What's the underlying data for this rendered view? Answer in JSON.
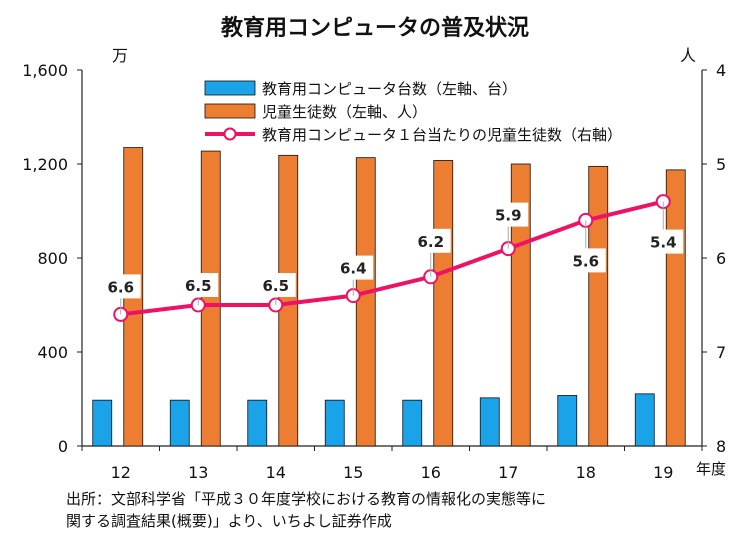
{
  "chart_data": {
    "type": "bar",
    "title": "教育用コンピュータの普及状況",
    "left_unit": "万",
    "right_unit": "人",
    "x_unit": "年度",
    "categories": [
      "12",
      "13",
      "14",
      "15",
      "16",
      "17",
      "18",
      "19"
    ],
    "left_axis": {
      "ylim": [
        0,
        1600
      ],
      "ticks": [
        "0",
        "400",
        "800",
        "1,200",
        "1,600"
      ],
      "tick_values": [
        0,
        400,
        800,
        1200,
        1600
      ]
    },
    "right_axis": {
      "ylim": [
        4,
        8
      ],
      "inverted": true,
      "ticks": [
        "4",
        "5",
        "6",
        "7",
        "8"
      ],
      "tick_values": [
        4,
        5,
        6,
        7,
        8
      ]
    },
    "series": [
      {
        "name": "教育用コンピュータ台数（左軸、台）",
        "type": "bar",
        "axis": "left",
        "color": "#1aa3e8",
        "values": [
          195,
          195,
          195,
          195,
          195,
          205,
          215,
          222
        ]
      },
      {
        "name": "児童生徒数（左軸、人）",
        "type": "bar",
        "axis": "left",
        "color": "#ed7d31",
        "values": [
          1270,
          1255,
          1237,
          1227,
          1215,
          1200,
          1190,
          1175
        ]
      },
      {
        "name": "教育用コンピュータ１台当たりの児童生徒数（右軸）",
        "type": "line",
        "axis": "right",
        "color": "#ee1166",
        "values": [
          6.6,
          6.5,
          6.5,
          6.4,
          6.2,
          5.9,
          5.6,
          5.4
        ],
        "labels": [
          "6.6",
          "6.5",
          "6.5",
          "6.4",
          "6.2",
          "5.9",
          "5.6",
          "5.4"
        ]
      }
    ],
    "grid": false,
    "legend": "top-center"
  },
  "source": {
    "line1": "出所：文部科学省「平成３０年度学校における教育の情報化の実態等に",
    "line2": "関する調査結果(概要)」より、いちよし証券作成"
  }
}
